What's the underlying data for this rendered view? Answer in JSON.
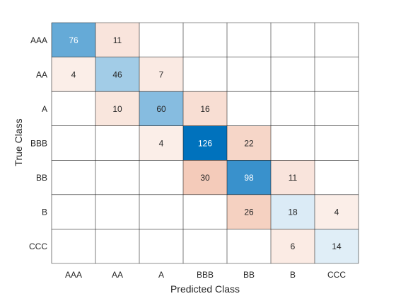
{
  "chart_data": {
    "type": "heatmap",
    "title": "",
    "xlabel": "Predicted Class",
    "ylabel": "True Class",
    "x_categories": [
      "AAA",
      "AA",
      "A",
      "BBB",
      "BB",
      "B",
      "CCC"
    ],
    "y_categories": [
      "AAA",
      "AA",
      "A",
      "BBB",
      "BB",
      "B",
      "CCC"
    ],
    "matrix": [
      [
        76,
        11,
        null,
        null,
        null,
        null,
        null
      ],
      [
        4,
        46,
        7,
        null,
        null,
        null,
        null
      ],
      [
        null,
        10,
        60,
        16,
        null,
        null,
        null
      ],
      [
        null,
        null,
        4,
        126,
        22,
        null,
        null
      ],
      [
        null,
        null,
        null,
        30,
        98,
        11,
        null
      ],
      [
        null,
        null,
        null,
        null,
        26,
        18,
        4
      ],
      [
        null,
        null,
        null,
        null,
        null,
        6,
        14
      ]
    ],
    "grid": true,
    "colors": {
      "diagonal_high": "#0072bd",
      "off_diagonal_high": "#d95319",
      "empty": "#ffffff",
      "grid_line": "#262626"
    }
  }
}
